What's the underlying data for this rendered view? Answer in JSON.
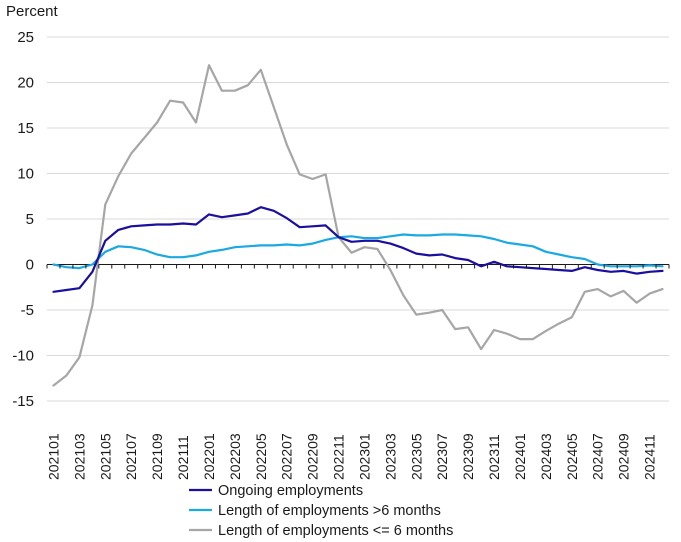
{
  "chart_data": {
    "type": "line",
    "title": "",
    "ylabel": "Percent",
    "xlabel": "",
    "ylim": [
      -15,
      25
    ],
    "yticks": [
      25,
      20,
      15,
      10,
      5,
      0,
      -5,
      -10,
      -15
    ],
    "grid": true,
    "legend_position": "bottom",
    "x": [
      "202101",
      "202102",
      "202103",
      "202104",
      "202105",
      "202106",
      "202107",
      "202108",
      "202109",
      "202110",
      "202111",
      "202112",
      "202201",
      "202202",
      "202203",
      "202204",
      "202205",
      "202206",
      "202207",
      "202208",
      "202209",
      "202210",
      "202211",
      "202212",
      "202301",
      "202302",
      "202303",
      "202304",
      "202305",
      "202306",
      "202307",
      "202308",
      "202309",
      "202310",
      "202311",
      "202312",
      "202401",
      "202402",
      "202403",
      "202404",
      "202405",
      "202406",
      "202407",
      "202408",
      "202409",
      "202410",
      "202411",
      "202412"
    ],
    "xtick_labels": [
      "202101",
      "202103",
      "202105",
      "202107",
      "202109",
      "202111",
      "202201",
      "202203",
      "202205",
      "202207",
      "202209",
      "202211",
      "202301",
      "202303",
      "202305",
      "202307",
      "202309",
      "202311",
      "202401",
      "202403",
      "202405",
      "202407",
      "202409",
      "202411"
    ],
    "series": [
      {
        "name": "Ongoing employments",
        "color": "#1a0f9e",
        "values": [
          -3.0,
          -2.8,
          -2.6,
          -0.8,
          2.6,
          3.8,
          4.2,
          4.3,
          4.4,
          4.4,
          4.5,
          4.4,
          5.5,
          5.2,
          5.4,
          5.6,
          6.3,
          5.9,
          5.1,
          4.1,
          4.2,
          4.3,
          3.0,
          2.5,
          2.6,
          2.6,
          2.3,
          1.8,
          1.2,
          1.0,
          1.1,
          0.7,
          0.5,
          -0.2,
          0.3,
          -0.2,
          -0.3,
          -0.4,
          -0.5,
          -0.6,
          -0.7,
          -0.3,
          -0.6,
          -0.8,
          -0.7,
          -1.0,
          -0.8,
          -0.7
        ]
      },
      {
        "name": "Length of employments >6 months",
        "color": "#1ba9e1",
        "values": [
          0.0,
          -0.3,
          -0.4,
          0.0,
          1.4,
          2.0,
          1.9,
          1.6,
          1.1,
          0.8,
          0.8,
          1.0,
          1.4,
          1.6,
          1.9,
          2.0,
          2.1,
          2.1,
          2.2,
          2.1,
          2.3,
          2.7,
          3.0,
          3.1,
          2.9,
          2.9,
          3.1,
          3.3,
          3.2,
          3.2,
          3.3,
          3.3,
          3.2,
          3.1,
          2.8,
          2.4,
          2.2,
          2.0,
          1.4,
          1.1,
          0.8,
          0.6,
          0.0,
          -0.2,
          -0.2,
          -0.2,
          -0.1,
          -0.2
        ]
      },
      {
        "name": "Length of employments <= 6 months",
        "color": "#a6a6a6",
        "values": [
          -13.3,
          -12.2,
          -10.2,
          -4.5,
          6.6,
          9.7,
          12.2,
          13.9,
          15.6,
          18.0,
          17.8,
          15.6,
          21.9,
          19.1,
          19.1,
          19.7,
          21.4,
          17.3,
          13.2,
          9.9,
          9.4,
          9.9,
          3.0,
          1.3,
          1.9,
          1.7,
          -0.6,
          -3.4,
          -5.5,
          -5.3,
          -5.0,
          -7.1,
          -6.9,
          -9.3,
          -7.2,
          -7.6,
          -8.2,
          -8.2,
          -7.3,
          -6.5,
          -5.8,
          -3.0,
          -2.7,
          -3.5,
          -2.9,
          -4.2,
          -3.2,
          -2.7
        ]
      }
    ]
  }
}
